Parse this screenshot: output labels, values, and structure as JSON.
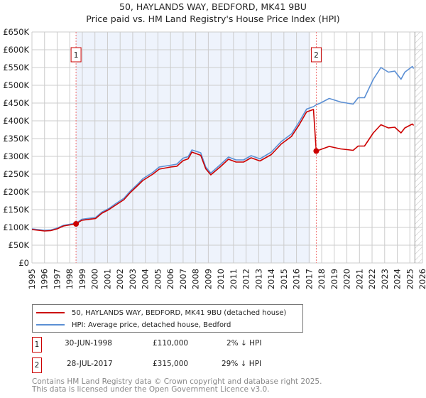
{
  "chart_data": {
    "type": "line",
    "title": "50, HAYLANDS WAY, BEDFORD, MK41 9BU",
    "subtitle": "Price paid vs. HM Land Registry's House Price Index (HPI)",
    "xlim": [
      1995,
      2026
    ],
    "ylim": [
      0,
      650000
    ],
    "x_ticks": [
      "1995",
      "1996",
      "1997",
      "1998",
      "1999",
      "2000",
      "2001",
      "2002",
      "2003",
      "2004",
      "2005",
      "2006",
      "2007",
      "2008",
      "2009",
      "2010",
      "2011",
      "2012",
      "2013",
      "2014",
      "2015",
      "2016",
      "2017",
      "2018",
      "2019",
      "2020",
      "2021",
      "2022",
      "2023",
      "2024",
      "2025",
      "2026"
    ],
    "y_ticks": [
      "£0",
      "£50K",
      "£100K",
      "£150K",
      "£200K",
      "£250K",
      "£300K",
      "£350K",
      "£400K",
      "£450K",
      "£500K",
      "£550K",
      "£600K",
      "£650K"
    ],
    "grid": true,
    "colors": {
      "price": "#cc0000",
      "hpi": "#5b8fd4",
      "shade": "#eef3fc"
    },
    "series": [
      {
        "name": "50, HAYLANDS WAY, BEDFORD, MK41 9BU (detached house)",
        "x": [
          1995,
          1995.5,
          1996,
          1996.5,
          1997,
          1997.5,
          1998,
          1998.5,
          1998.95,
          2000.05,
          2000.55,
          2001.1,
          2001.65,
          2002.3,
          2002.8,
          2003.4,
          2003.8,
          2004.6,
          2005.1,
          2006.0,
          2006.5,
          2007.0,
          2007.4,
          2007.7,
          2008.4,
          2008.8,
          2009.2,
          2010.0,
          2010.6,
          2011.2,
          2011.8,
          2012.4,
          2013.1,
          2014.0,
          2014.8,
          2015.6,
          2016.2,
          2016.8,
          2017.35,
          2017.57,
          2017.9,
          2018.6,
          2019.5,
          2020.5,
          2020.9,
          2021.4,
          2022.1,
          2022.7,
          2023.3,
          2023.8,
          2024.3,
          2024.6,
          2025.2,
          2025.3
        ],
        "values": [
          94000,
          92000,
          90000,
          91000,
          96000,
          104000,
          107000,
          110000,
          120000,
          125000,
          140000,
          150000,
          163000,
          178000,
          198000,
          218000,
          232000,
          250000,
          264000,
          270000,
          272000,
          288000,
          293000,
          312000,
          303000,
          265000,
          248000,
          272000,
          292000,
          284000,
          284000,
          296000,
          287000,
          305000,
          335000,
          356000,
          388000,
          425000,
          432000,
          315000,
          319000,
          328000,
          321000,
          317000,
          329000,
          329000,
          366000,
          389000,
          380000,
          382000,
          366000,
          380000,
          391000,
          387000
        ]
      },
      {
        "name": "HPI: Average price, detached house, Bedford",
        "x": [
          1995,
          1995.5,
          1996,
          1996.5,
          1997,
          1997.5,
          1998,
          1998.5,
          1998.95,
          2000.05,
          2000.55,
          2001.1,
          2001.65,
          2002.3,
          2002.8,
          2003.4,
          2003.8,
          2004.6,
          2005.1,
          2006.0,
          2006.5,
          2007.0,
          2007.4,
          2007.7,
          2008.4,
          2008.8,
          2009.2,
          2010.0,
          2010.6,
          2011.2,
          2011.8,
          2012.4,
          2013.1,
          2014.0,
          2014.8,
          2015.6,
          2016.2,
          2016.8,
          2017.35,
          2017.57,
          2017.9,
          2018.6,
          2019.5,
          2020.5,
          2020.9,
          2021.4,
          2022.1,
          2022.7,
          2023.3,
          2023.8,
          2024.3,
          2024.6,
          2025.2,
          2025.3
        ],
        "values": [
          96000,
          94000,
          92000,
          93000,
          98000,
          106000,
          109000,
          112000,
          123000,
          128000,
          143000,
          153000,
          167000,
          182000,
          202000,
          222000,
          237000,
          255000,
          270000,
          275000,
          278000,
          295000,
          299000,
          318000,
          310000,
          270000,
          253000,
          278000,
          298000,
          290000,
          290000,
          302000,
          293000,
          312000,
          342000,
          363000,
          396000,
          433000,
          440000,
          445000,
          450000,
          463000,
          453000,
          447000,
          465000,
          465000,
          517000,
          550000,
          537000,
          540000,
          517000,
          537000,
          553000,
          547000
        ]
      }
    ],
    "sales": [
      {
        "label": "1",
        "year": 1998.5,
        "value": 110000
      },
      {
        "label": "2",
        "year": 2017.57,
        "value": 315000
      }
    ],
    "shaded_range": [
      1998.5,
      2017.1
    ],
    "hatched_from": 2025.4
  },
  "legend": {
    "price": "50, HAYLANDS WAY, BEDFORD, MK41 9BU (detached house)",
    "hpi": "HPI: Average price, detached house, Bedford"
  },
  "transactions": [
    {
      "num": "1",
      "date": "30-JUN-1998",
      "price": "£110,000",
      "hpi": "2% ↓ HPI"
    },
    {
      "num": "2",
      "date": "28-JUL-2017",
      "price": "£315,000",
      "hpi": "29% ↓ HPI"
    }
  ],
  "footer": {
    "line1": "Contains HM Land Registry data © Crown copyright and database right 2025.",
    "line2": "This data is licensed under the Open Government Licence v3.0."
  }
}
